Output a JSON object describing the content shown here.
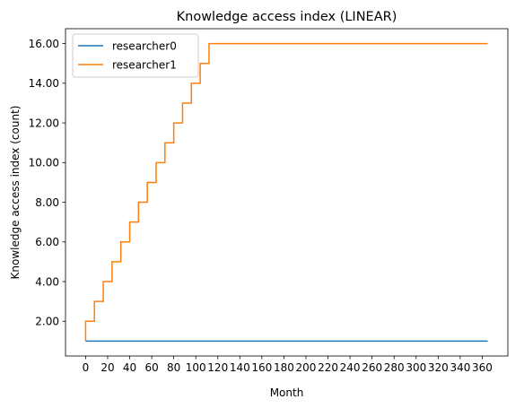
{
  "chart_data": {
    "type": "line",
    "title": "Knowledge access index (LINEAR)",
    "xlabel": "Month",
    "ylabel": "Knowledge access index (count)",
    "xlim": [
      -18.25,
      383.25
    ],
    "ylim": [
      0.25,
      16.75
    ],
    "grid": false,
    "legend_position": "upper-left",
    "x_ticks": [
      0,
      20,
      40,
      60,
      80,
      100,
      120,
      140,
      160,
      180,
      200,
      220,
      240,
      260,
      280,
      300,
      320,
      340,
      360
    ],
    "x_tick_labels": [
      "0",
      "20",
      "40",
      "60",
      "80",
      "100",
      "120",
      "140",
      "160",
      "180",
      "200",
      "220",
      "240",
      "260",
      "280",
      "300",
      "320",
      "340",
      "360"
    ],
    "y_ticks": [
      2,
      4,
      6,
      8,
      10,
      12,
      14,
      16
    ],
    "y_tick_labels": [
      "2.00",
      "4.00",
      "6.00",
      "8.00",
      "10.00",
      "12.00",
      "14.00",
      "16.00"
    ],
    "series": [
      {
        "name": "researcher0",
        "color": "#1f77b4",
        "x": [
          0,
          365
        ],
        "y": [
          1,
          1
        ]
      },
      {
        "name": "researcher1",
        "color": "#ff7f0e",
        "x": [
          0,
          0,
          8,
          8,
          16,
          16,
          24,
          24,
          32,
          32,
          40,
          40,
          48,
          48,
          56,
          56,
          64,
          64,
          72,
          72,
          80,
          80,
          88,
          88,
          96,
          96,
          104,
          104,
          112,
          112,
          120,
          120,
          128,
          128,
          365
        ],
        "y": [
          1,
          2,
          2,
          3,
          3,
          4,
          4,
          5,
          5,
          6,
          6,
          7,
          7,
          8,
          8,
          9,
          9,
          10,
          10,
          11,
          11,
          12,
          12,
          13,
          13,
          14,
          14,
          15,
          15,
          16,
          16,
          16,
          16,
          16,
          16
        ]
      }
    ]
  }
}
